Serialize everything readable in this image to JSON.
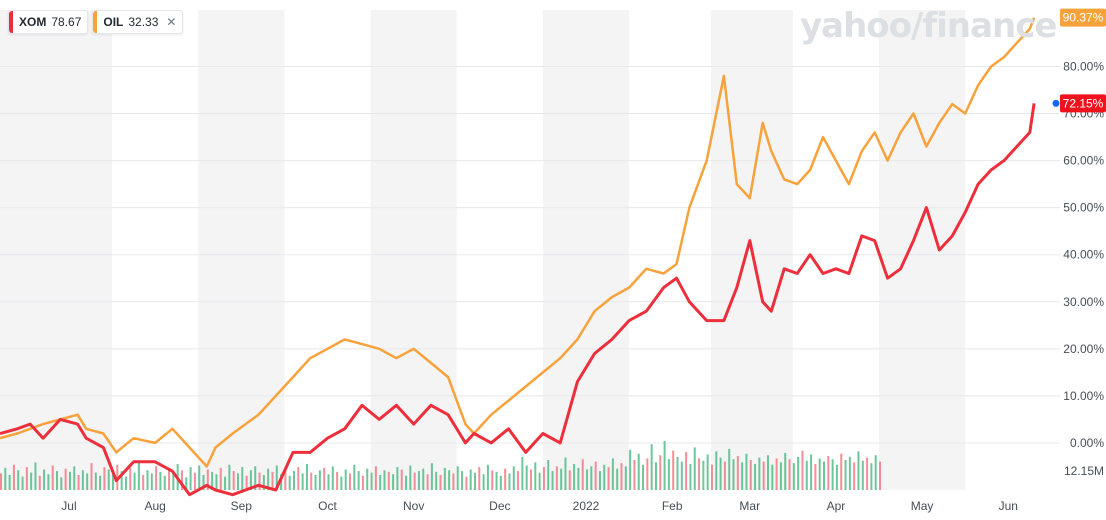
{
  "legend": {
    "series": [
      {
        "symbol": "XOM",
        "price": "78.67",
        "color": "#ec2f3b"
      },
      {
        "symbol": "OIL",
        "price": "32.33",
        "color": "#f7a23b",
        "close_icon": "close-icon"
      }
    ]
  },
  "watermark": "yahoo/finance",
  "chart_data": {
    "type": "line",
    "ylim": [
      -10,
      92
    ],
    "ytick_values": [
      0,
      10,
      20,
      30,
      40,
      50,
      60,
      70,
      80
    ],
    "ytick_labels": [
      "0.00%",
      "10.00%",
      "20.00%",
      "30.00%",
      "40.00%",
      "50.00%",
      "60.00%",
      "70.00%",
      "80.00%"
    ],
    "volume_label": "12.15M",
    "xtick_labels": [
      "Jul",
      "Aug",
      "Sep",
      "Oct",
      "Nov",
      "Dec",
      "2022",
      "Feb",
      "Mar",
      "Apr",
      "May",
      "Jun"
    ],
    "xlim": [
      0,
      12.3
    ],
    "xtick_positions": [
      0.8,
      1.8,
      2.8,
      3.8,
      4.8,
      5.8,
      6.8,
      7.8,
      8.7,
      9.7,
      10.7,
      11.7
    ],
    "series": [
      {
        "name": "XOM",
        "color": "#ec2f3b",
        "last_label": "72.15%",
        "x": [
          0,
          0.2,
          0.35,
          0.5,
          0.7,
          0.9,
          1.0,
          1.2,
          1.35,
          1.55,
          1.8,
          2.0,
          2.2,
          2.4,
          2.5,
          2.7,
          3.0,
          3.2,
          3.4,
          3.6,
          3.8,
          4.0,
          4.2,
          4.4,
          4.6,
          4.8,
          5.0,
          5.2,
          5.4,
          5.5,
          5.7,
          5.9,
          6.1,
          6.3,
          6.5,
          6.7,
          6.9,
          7.1,
          7.3,
          7.5,
          7.7,
          7.85,
          8.0,
          8.2,
          8.4,
          8.55,
          8.7,
          8.85,
          8.95,
          9.1,
          9.25,
          9.4,
          9.55,
          9.7,
          9.85,
          10.0,
          10.15,
          10.3,
          10.45,
          10.6,
          10.75,
          10.9,
          11.05,
          11.2,
          11.35,
          11.5,
          11.65,
          11.8,
          11.95,
          12.0
        ],
        "values": [
          2,
          3,
          4,
          1,
          5,
          4,
          1,
          -1,
          -8,
          -4,
          -4,
          -6,
          -11,
          -9,
          -10,
          -11,
          -9,
          -10,
          -2,
          -2,
          1,
          3,
          8,
          5,
          8,
          4,
          8,
          6,
          0,
          2,
          0,
          3,
          -2,
          2,
          0,
          13,
          19,
          22,
          26,
          28,
          33,
          35,
          30,
          26,
          26,
          33,
          43,
          30,
          28,
          37,
          36,
          40,
          36,
          37,
          36,
          44,
          43,
          35,
          37,
          43,
          50,
          41,
          44,
          49,
          55,
          58,
          60,
          63,
          66,
          72.15
        ]
      },
      {
        "name": "OIL",
        "color": "#f7a23b",
        "last_label": "90.37%",
        "x": [
          0,
          0.2,
          0.35,
          0.5,
          0.7,
          0.9,
          1.0,
          1.2,
          1.35,
          1.55,
          1.8,
          2.0,
          2.2,
          2.4,
          2.5,
          2.7,
          3.0,
          3.2,
          3.4,
          3.6,
          3.8,
          4.0,
          4.2,
          4.4,
          4.6,
          4.8,
          5.0,
          5.2,
          5.4,
          5.5,
          5.7,
          5.9,
          6.1,
          6.3,
          6.5,
          6.7,
          6.9,
          7.1,
          7.3,
          7.5,
          7.7,
          7.85,
          8.0,
          8.2,
          8.4,
          8.55,
          8.7,
          8.85,
          8.95,
          9.1,
          9.25,
          9.4,
          9.55,
          9.7,
          9.85,
          10.0,
          10.15,
          10.3,
          10.45,
          10.6,
          10.75,
          10.9,
          11.05,
          11.2,
          11.35,
          11.5,
          11.65,
          11.8,
          11.95,
          12.0
        ],
        "values": [
          1,
          2,
          3,
          4,
          5,
          6,
          3,
          2,
          -2,
          1,
          0,
          3,
          -1,
          -5,
          -1,
          2,
          6,
          10,
          14,
          18,
          20,
          22,
          21,
          20,
          18,
          20,
          17,
          14,
          4,
          2,
          6,
          9,
          12,
          15,
          18,
          22,
          28,
          31,
          33,
          37,
          36,
          38,
          50,
          60,
          78,
          55,
          52,
          68,
          62,
          56,
          55,
          58,
          65,
          60,
          55,
          62,
          66,
          60,
          66,
          70,
          63,
          68,
          72,
          70,
          76,
          80,
          82,
          85,
          88,
          90.37
        ]
      }
    ],
    "volume": {
      "max": 9.5,
      "x_start": 0,
      "x_step": 0.05,
      "values": [
        2.1,
        2.8,
        1.9,
        3.2,
        2.5,
        1.7,
        2.9,
        2.2,
        3.5,
        1.8,
        2.6,
        2.0,
        3.1,
        2.4,
        1.6,
        2.7,
        2.3,
        3.0,
        1.9,
        2.5,
        2.1,
        3.4,
        2.2,
        1.8,
        2.9,
        2.6,
        2.0,
        3.2,
        2.4,
        1.7,
        2.8,
        2.2,
        3.6,
        1.9,
        2.5,
        2.1,
        3.0,
        2.3,
        1.8,
        2.7,
        2.0,
        3.3,
        2.5,
        1.6,
        2.9,
        2.2,
        3.1,
        1.9,
        2.6,
        2.3,
        2.0,
        2.8,
        1.7,
        3.2,
        2.4,
        2.1,
        2.9,
        1.8,
        2.5,
        3.0,
        2.2,
        1.9,
        2.7,
        2.3,
        3.1,
        2.0,
        2.6,
        1.8,
        2.4,
        2.9,
        2.1,
        3.3,
        2.2,
        1.9,
        2.5,
        2.8,
        2.0,
        3.0,
        2.3,
        1.7,
        2.6,
        2.1,
        3.2,
        2.4,
        1.8,
        2.7,
        2.2,
        3.0,
        1.9,
        2.5,
        2.3,
        2.0,
        2.9,
        2.6,
        1.8,
        3.1,
        2.2,
        2.4,
        2.7,
        2.0,
        3.4,
        2.3,
        1.9,
        2.8,
        2.5,
        2.1,
        3.0,
        2.4,
        1.7,
        2.6,
        2.2,
        2.9,
        2.0,
        3.2,
        2.5,
        2.3,
        1.8,
        2.7,
        2.1,
        3.0,
        2.4,
        4.2,
        3.1,
        2.6,
        3.5,
        2.2,
        2.9,
        3.8,
        2.4,
        3.0,
        2.7,
        4.1,
        2.5,
        3.3,
        2.8,
        3.9,
        2.6,
        3.0,
        3.6,
        2.4,
        3.2,
        2.9,
        4.0,
        2.7,
        3.4,
        3.0,
        5.1,
        3.8,
        4.6,
        3.2,
        4.0,
        5.8,
        3.5,
        4.4,
        6.2,
        3.9,
        5.0,
        4.2,
        3.6,
        4.8,
        3.3,
        5.4,
        4.0,
        3.7,
        4.5,
        3.2,
        4.9,
        4.1,
        3.6,
        5.2,
        3.9,
        4.3,
        3.5,
        4.6,
        3.8,
        3.3,
        4.1,
        3.6,
        4.4,
        3.2,
        4.0,
        3.5,
        4.7,
        3.9,
        3.4,
        4.2,
        5.0,
        3.7,
        4.5,
        3.3,
        4.0,
        3.6,
        4.3,
        3.9,
        3.2,
        4.6,
        3.8,
        4.2,
        3.5,
        4.9,
        3.7,
        4.1,
        3.4,
        4.4,
        3.6
      ]
    }
  }
}
